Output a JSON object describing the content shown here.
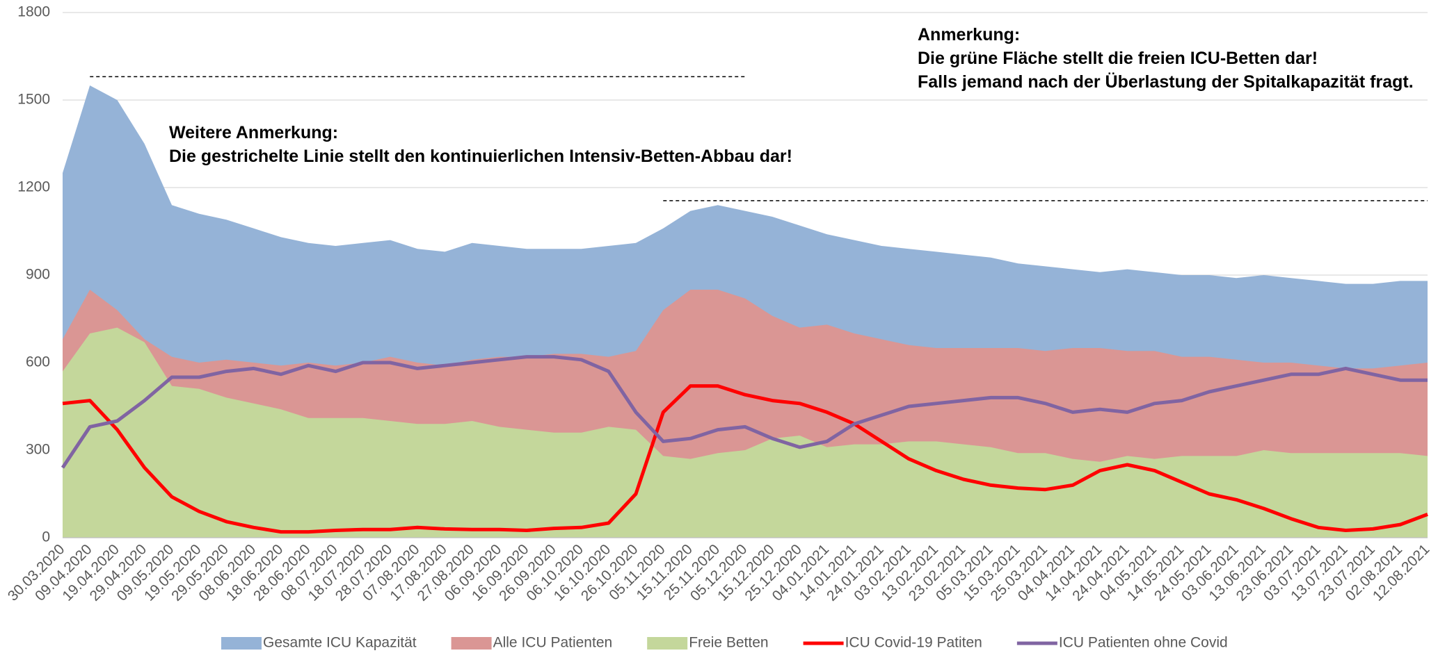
{
  "chart_data": {
    "type": "area",
    "annotations": [
      "Anmerkung:",
      "Die grüne Fläche stellt die freien ICU-Betten dar!",
      "Falls jemand nach der Überlastung der Spitalkapazität fragt.",
      "Weitere Anmerkung:",
      "Die gestrichelte Linie stellt den kontinuierlichen Intensiv-Betten-Abbau dar!"
    ],
    "categories": [
      "30.03.2020",
      "09.04.2020",
      "19.04.2020",
      "29.04.2020",
      "09.05.2020",
      "19.05.2020",
      "29.05.2020",
      "08.06.2020",
      "18.06.2020",
      "28.06.2020",
      "08.07.2020",
      "18.07.2020",
      "28.07.2020",
      "07.08.2020",
      "17.08.2020",
      "27.08.2020",
      "06.09.2020",
      "16.09.2020",
      "26.09.2020",
      "06.10.2020",
      "16.10.2020",
      "26.10.2020",
      "05.11.2020",
      "15.11.2020",
      "25.11.2020",
      "05.12.2020",
      "15.12.2020",
      "25.12.2020",
      "04.01.2021",
      "14.01.2021",
      "24.01.2021",
      "03.02.2021",
      "13.02.2021",
      "23.02.2021",
      "05.03.2021",
      "15.03.2021",
      "25.03.2021",
      "04.04.2021",
      "14.04.2021",
      "24.04.2021",
      "04.05.2021",
      "14.05.2021",
      "24.05.2021",
      "03.06.2021",
      "13.06.2021",
      "23.06.2021",
      "03.07.2021",
      "13.07.2021",
      "23.07.2021",
      "02.08.2021",
      "12.08.2021"
    ],
    "series": [
      {
        "name": "Gesamte ICU Kapazität",
        "type": "area",
        "color": "#95b3d7",
        "values": [
          1250,
          1550,
          1500,
          1350,
          1140,
          1110,
          1090,
          1060,
          1030,
          1010,
          1000,
          1010,
          1020,
          990,
          980,
          1010,
          1000,
          990,
          990,
          990,
          1000,
          1010,
          1060,
          1120,
          1140,
          1120,
          1100,
          1070,
          1040,
          1020,
          1000,
          990,
          980,
          970,
          960,
          940,
          930,
          920,
          910,
          920,
          910,
          900,
          900,
          890,
          900,
          890,
          880,
          870,
          870,
          880,
          880
        ]
      },
      {
        "name": "Alle ICU Patienten",
        "type": "area",
        "color": "#da9694",
        "values": [
          680,
          850,
          780,
          680,
          620,
          600,
          610,
          600,
          590,
          600,
          590,
          600,
          620,
          600,
          590,
          610,
          620,
          620,
          630,
          630,
          620,
          640,
          780,
          850,
          850,
          820,
          760,
          720,
          730,
          700,
          680,
          660,
          650,
          650,
          650,
          650,
          640,
          650,
          650,
          640,
          640,
          620,
          620,
          610,
          600,
          600,
          590,
          580,
          580,
          590,
          600
        ]
      },
      {
        "name": "Freie Betten",
        "type": "area",
        "color": "#c4d79b",
        "values": [
          570,
          700,
          720,
          670,
          520,
          510,
          480,
          460,
          440,
          410,
          410,
          410,
          400,
          390,
          390,
          400,
          380,
          370,
          360,
          360,
          380,
          370,
          280,
          270,
          290,
          300,
          340,
          350,
          310,
          320,
          320,
          330,
          330,
          320,
          310,
          290,
          290,
          270,
          260,
          280,
          270,
          280,
          280,
          280,
          300,
          290,
          290,
          290,
          290,
          290,
          280
        ]
      },
      {
        "name": "ICU Covid-19 Patiten",
        "type": "line",
        "color": "#ff0000",
        "values": [
          460,
          470,
          370,
          240,
          140,
          90,
          55,
          35,
          20,
          20,
          25,
          28,
          28,
          35,
          30,
          28,
          28,
          25,
          32,
          35,
          50,
          150,
          430,
          520,
          520,
          490,
          470,
          460,
          430,
          390,
          330,
          270,
          230,
          200,
          180,
          170,
          165,
          180,
          230,
          250,
          230,
          190,
          150,
          130,
          100,
          65,
          35,
          25,
          30,
          45,
          80
        ]
      },
      {
        "name": "ICU Patienten ohne Covid",
        "type": "line",
        "color": "#8064a2",
        "values": [
          240,
          380,
          400,
          470,
          550,
          550,
          570,
          580,
          560,
          590,
          570,
          600,
          600,
          580,
          590,
          600,
          610,
          620,
          620,
          610,
          570,
          430,
          330,
          340,
          370,
          380,
          340,
          310,
          330,
          390,
          420,
          450,
          460,
          470,
          480,
          480,
          460,
          430,
          440,
          430,
          460,
          470,
          500,
          520,
          540,
          560,
          560,
          580,
          560,
          540,
          540
        ]
      }
    ],
    "dashed_lines": [
      {
        "y": 1580,
        "from": "09.04.2020",
        "to": "05.12.2020"
      },
      {
        "y": 1155,
        "from": "05.11.2020",
        "to": "12.08.2021"
      }
    ],
    "ylim": [
      0,
      1800
    ],
    "yticks": [
      0,
      300,
      600,
      900,
      1200,
      1500,
      1800
    ],
    "grid": true,
    "legend": "bottom"
  }
}
